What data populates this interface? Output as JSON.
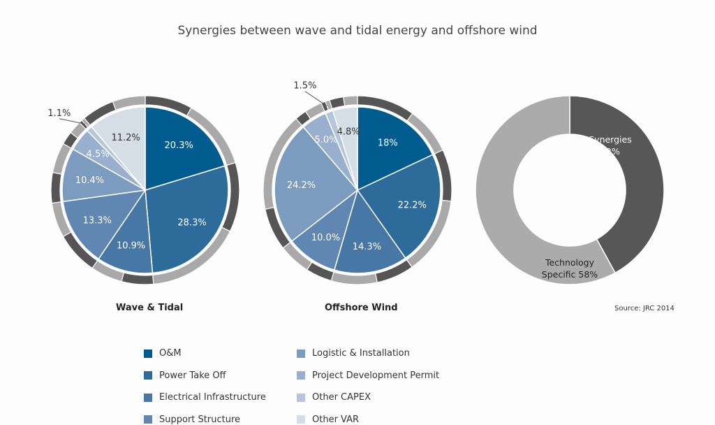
{
  "title": "Synergies between wave and tidal energy and offshore wind",
  "source": "Source: JRC 2014",
  "ring_colors": {
    "synergy": "#555555",
    "specific": "#a9a9a9"
  },
  "chart_data": [
    {
      "type": "pie",
      "title": "Wave & Tidal",
      "categories": [
        "O&M",
        "Power Take Off",
        "Electrical Infrastructure",
        "Support Structure",
        "Logistic & Installation",
        "Project Development Permit",
        "Other CAPEX",
        "Other VAR"
      ],
      "values": [
        20.3,
        28.3,
        10.9,
        13.3,
        10.4,
        4.5,
        1.1,
        11.2
      ],
      "labels": [
        "20.3%",
        "28.3%",
        "10.9%",
        "13.3%",
        "10.4%",
        "4.5%",
        "1.1%",
        "11.2%"
      ],
      "outer_ring_synergy_share": [
        0.4,
        0.42,
        0.5,
        0.55,
        0.5,
        0.5,
        0.5,
        0.5
      ]
    },
    {
      "type": "pie",
      "title": "Offshore Wind",
      "categories": [
        "O&M",
        "Power Take Off",
        "Electrical Infrastructure",
        "Support Structure",
        "Logistic & Installation",
        "Project Development Permit",
        "Other CAPEX",
        "Other VAR"
      ],
      "values": [
        18,
        22.2,
        14.3,
        10.0,
        24.2,
        5.0,
        1.5,
        4.8
      ],
      "labels": [
        "18%",
        "22.2%",
        "14.3%",
        "10.0%",
        "24.2%",
        "5.0%",
        "1.5%",
        "4.8%"
      ],
      "outer_ring_synergy_share": [
        0.55,
        0.4,
        0.45,
        0.45,
        0.3,
        0.4,
        0.5,
        0.5
      ]
    },
    {
      "type": "donut",
      "categories": [
        "Synergies",
        "Technology Specific"
      ],
      "values": [
        42,
        58
      ],
      "labels": [
        [
          "Synergies",
          "42%"
        ],
        [
          "Technology",
          "Specific 58%"
        ]
      ],
      "colors": [
        "#575757",
        "#ababab"
      ]
    }
  ],
  "legend": [
    {
      "label": "O&M",
      "color": "#005c8f"
    },
    {
      "label": "Power Take Off",
      "color": "#2d6b9b"
    },
    {
      "label": "Electrical Infrastructure",
      "color": "#4677a5"
    },
    {
      "label": "Support Structure",
      "color": "#5f87b1"
    },
    {
      "label": "Logistic & Installation",
      "color": "#7b9bbf"
    },
    {
      "label": "Project Development Permit",
      "color": "#98b0cd"
    },
    {
      "label": "Other CAPEX",
      "color": "#b6c6da"
    },
    {
      "label": "Other VAR",
      "color": "#d5dde7"
    }
  ]
}
